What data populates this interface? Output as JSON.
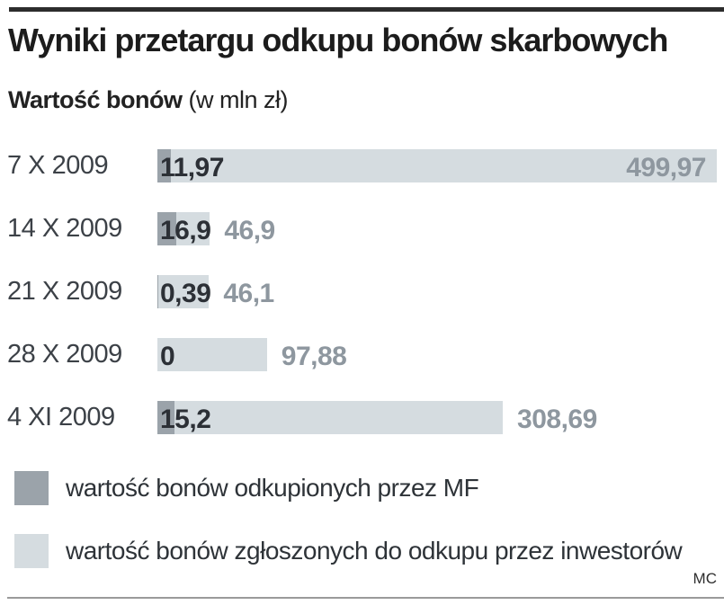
{
  "header": {
    "title": "Wyniki przetargu odkupu bonów skarbowych",
    "subtitle_bold": "Wartość bonów",
    "subtitle_units": " (w mln zł)"
  },
  "chart_data": {
    "type": "bar",
    "orientation": "horizontal",
    "title": "Wyniki przetargu odkupu bonów skarbowych",
    "value_unit": "mln zł",
    "categories": [
      "7 X 2009",
      "14 X 2009",
      "21 X 2009",
      "28 X 2009",
      "4 XI 2009"
    ],
    "series": [
      {
        "name": "wartość bonów odkupionych przez MF",
        "color": "#9ba3aa",
        "values": [
          11.97,
          16.9,
          0.39,
          0,
          15.2
        ],
        "labels": [
          "11,97",
          "16,9",
          "0,39",
          "0",
          "15,2"
        ]
      },
      {
        "name": "wartość bonów zgłoszonych do odkupu przez inwestorów",
        "color": "#d5dce0",
        "values": [
          499.97,
          46.9,
          46.1,
          97.88,
          308.69
        ],
        "labels": [
          "499,97",
          "46,9",
          "46,1",
          "97,88",
          "308,69"
        ]
      }
    ],
    "xlim": [
      0,
      500
    ],
    "grid": false,
    "legend_position": "bottom",
    "bars_overlap": true,
    "value_labels_shown": true
  },
  "legend": {
    "items": [
      {
        "label": "wartość bonów odkupionych przez MF",
        "color": "#9ba3aa"
      },
      {
        "label": "wartość bonów zgłoszonych do odkupu przez inwestorów",
        "color": "#d5dce0"
      }
    ]
  },
  "footer": {
    "credit": "MC"
  }
}
